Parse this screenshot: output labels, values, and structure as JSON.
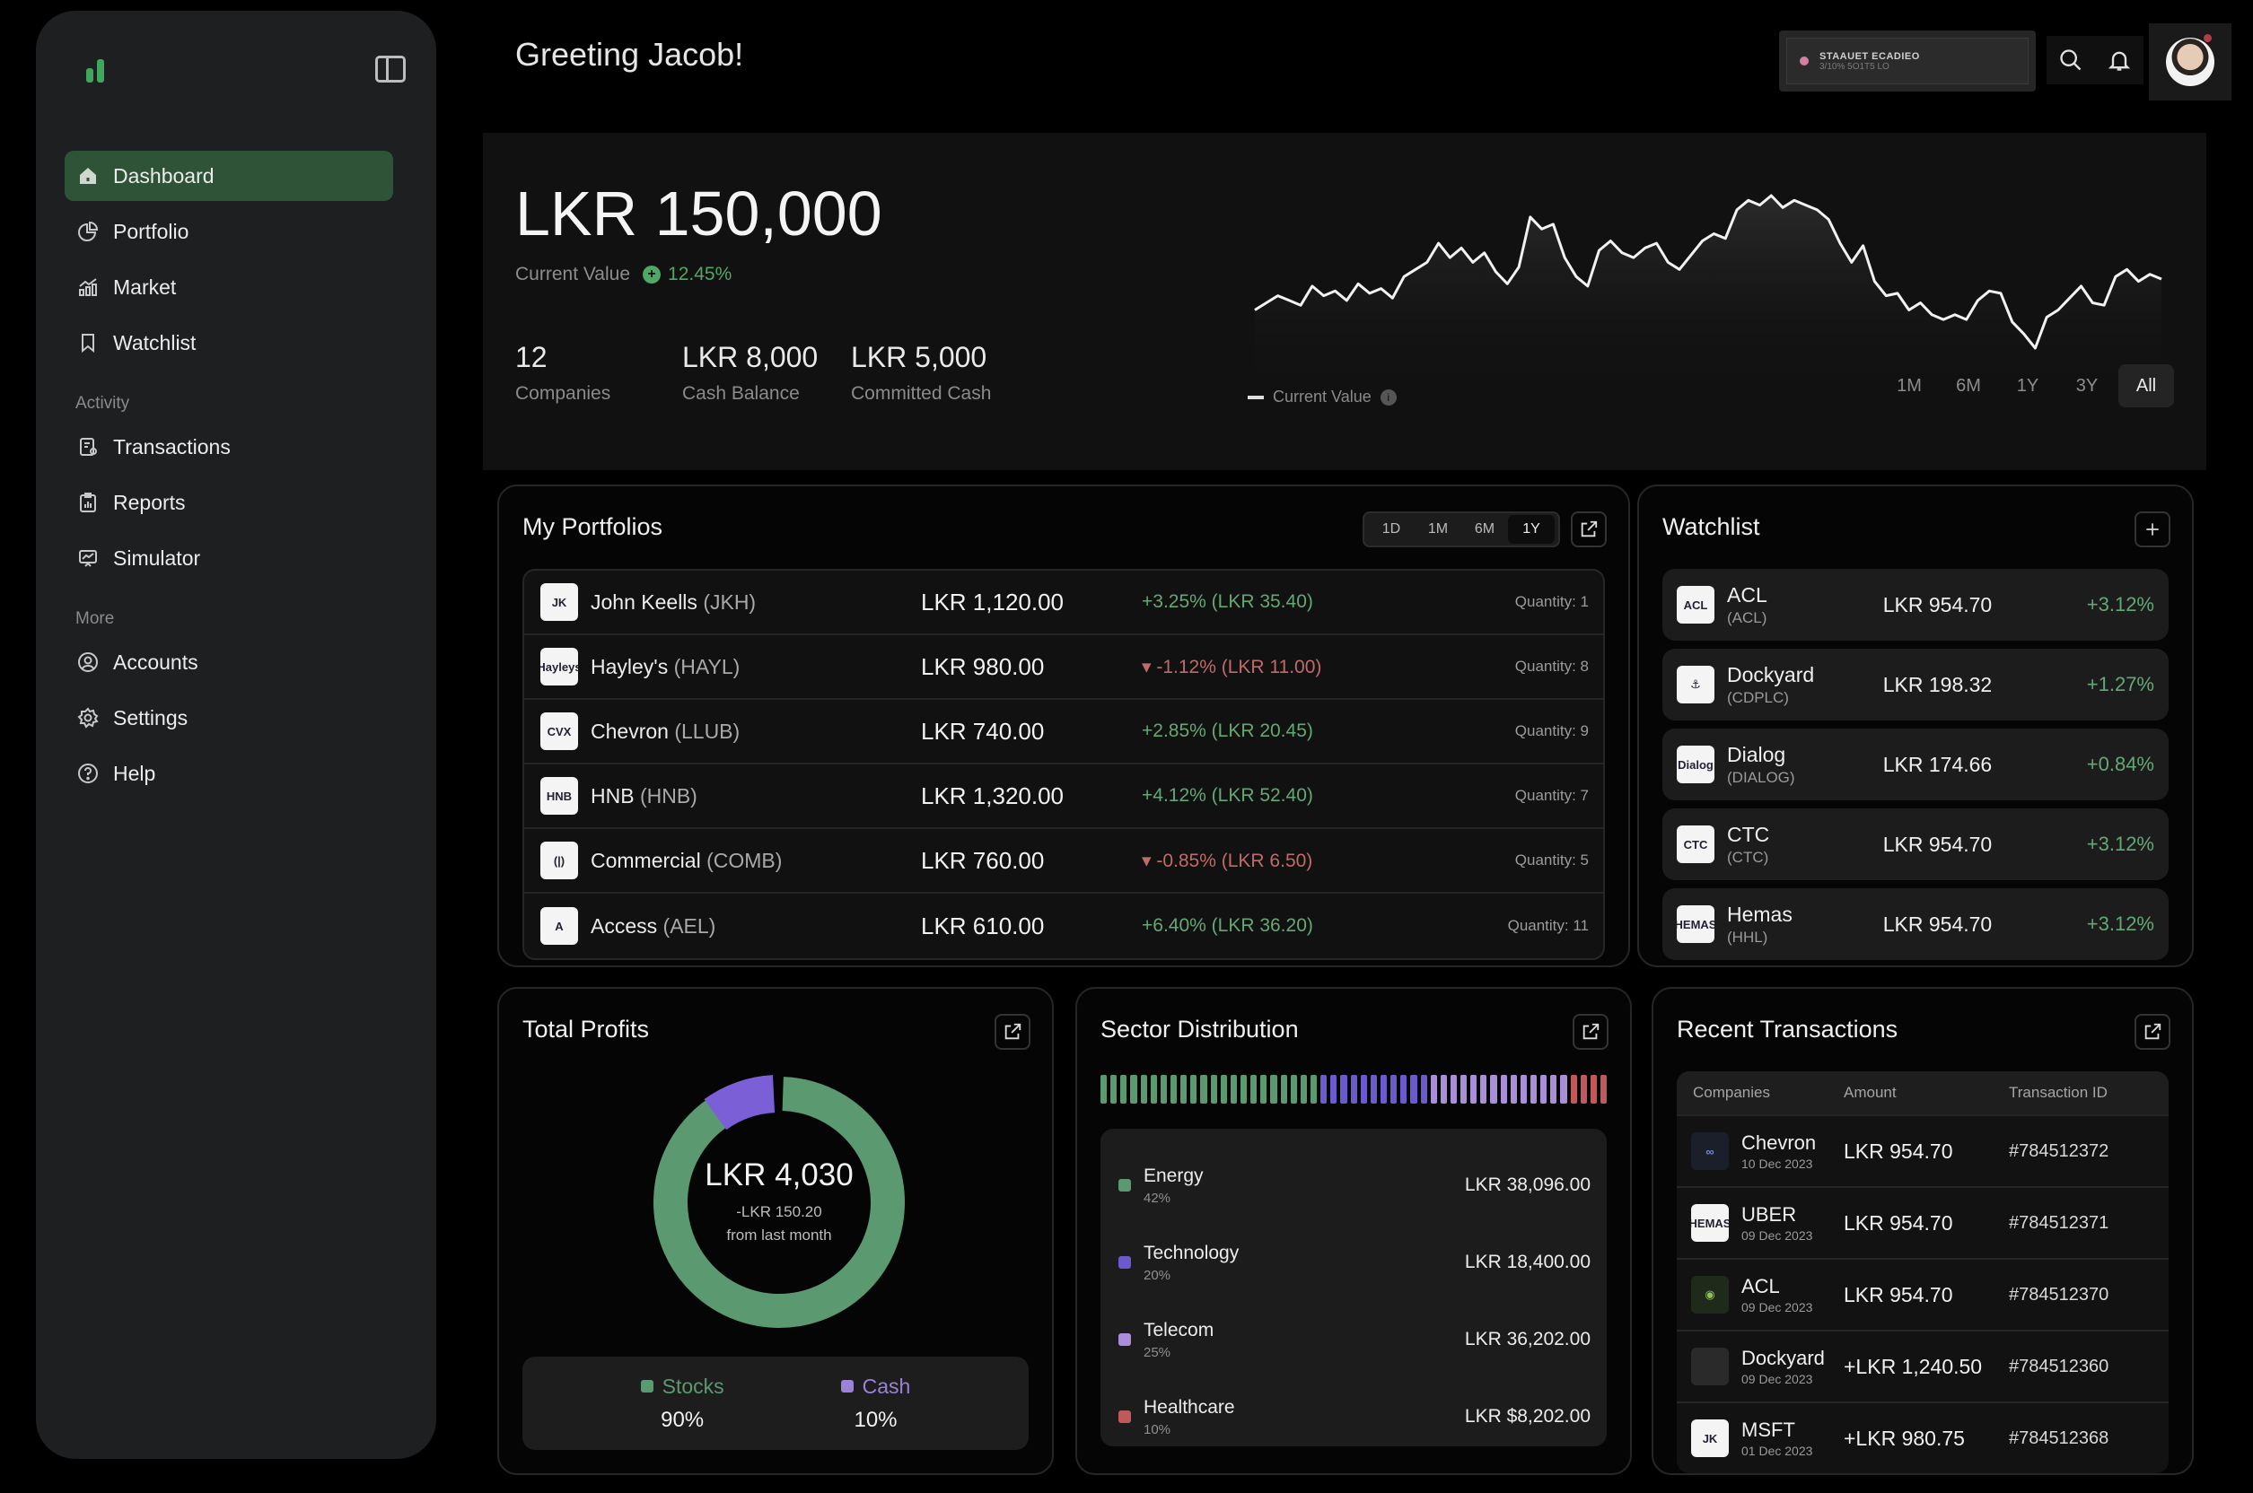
{
  "sidebar": {
    "nav": [
      {
        "label": "Dashboard",
        "icon": "home-icon",
        "active": true
      },
      {
        "label": "Portfolio",
        "icon": "pie-chart-icon"
      },
      {
        "label": "Market",
        "icon": "market-chart-icon"
      },
      {
        "label": "Watchlist",
        "icon": "bookmark-icon"
      }
    ],
    "activity_label": "Activity",
    "activity": [
      {
        "label": "Transactions",
        "icon": "receipt-icon"
      },
      {
        "label": "Reports",
        "icon": "clipboard-chart-icon"
      },
      {
        "label": "Simulator",
        "icon": "monitor-chart-icon"
      }
    ],
    "more_label": "More",
    "more": [
      {
        "label": "Accounts",
        "icon": "user-circle-icon"
      },
      {
        "label": "Settings",
        "icon": "gear-icon"
      },
      {
        "label": "Help",
        "icon": "help-circle-icon"
      }
    ]
  },
  "header": {
    "greeting": "Greeting Jacob!",
    "market_status": {
      "title": "STAAUET ECADIEO",
      "subtitle": "3/10% 5O1T5 LO",
      "dot_color": "#d67fa3"
    }
  },
  "hero": {
    "value": "LKR 150,000",
    "label": "Current Value",
    "change": "12.45%",
    "stats": [
      {
        "value": "12",
        "label": "Companies"
      },
      {
        "value": "LKR 8,000",
        "label": "Cash Balance"
      },
      {
        "value": "LKR 5,000",
        "label": "Committed Cash"
      }
    ],
    "legend": "Current Value",
    "ranges": [
      "1M",
      "6M",
      "1Y",
      "3Y",
      "All"
    ],
    "active_range": "All"
  },
  "chart_data": {
    "type": "line",
    "title": "Current Value",
    "series": [
      {
        "name": "Current Value",
        "values": [
          38,
          41,
          44,
          42,
          40,
          48,
          44,
          46,
          42,
          49,
          45,
          47,
          43,
          52,
          55,
          58,
          66,
          60,
          64,
          58,
          62,
          54,
          49,
          56,
          77,
          72,
          74,
          60,
          52,
          48,
          63,
          67,
          62,
          60,
          64,
          66,
          58,
          55,
          61,
          67,
          70,
          68,
          80,
          84,
          82,
          86,
          81,
          84,
          82,
          80,
          76,
          66,
          58,
          65,
          50,
          44,
          45,
          38,
          41,
          36,
          34,
          36,
          34,
          42,
          46,
          45,
          33,
          28,
          22,
          35,
          38,
          43,
          48,
          41,
          40,
          52,
          55,
          50,
          53,
          51
        ]
      }
    ],
    "xlabel": "",
    "ylabel": "",
    "grid": false,
    "legend_position": "bottom-left"
  },
  "portfolios": {
    "title": "My Portfolios",
    "ranges": [
      "1D",
      "1M",
      "6M",
      "1Y"
    ],
    "active_range": "1Y",
    "rows": [
      {
        "name": "John Keells",
        "ticker": "(JKH)",
        "price": "LKR 1,120.00",
        "change": "+3.25% (LKR 35.40)",
        "dir": "up",
        "qty": "Quantity: 1",
        "logo": "JK"
      },
      {
        "name": "Hayley's",
        "ticker": "(HAYL)",
        "price": "LKR 980.00",
        "change": "▾ -1.12% (LKR 11.00)",
        "dir": "down",
        "qty": "Quantity: 8",
        "logo": "Hayleys"
      },
      {
        "name": "Chevron",
        "ticker": "(LLUB)",
        "price": "LKR 740.00",
        "change": "+2.85% (LKR 20.45)",
        "dir": "up",
        "qty": "Quantity: 9",
        "logo": "CVX"
      },
      {
        "name": "HNB",
        "ticker": "(HNB)",
        "price": "LKR 1,320.00",
        "change": "+4.12% (LKR 52.40)",
        "dir": "up",
        "qty": "Quantity: 7",
        "logo": "HNB"
      },
      {
        "name": "Commercial",
        "ticker": "(COMB)",
        "price": "LKR 760.00",
        "change": "▾ -0.85% (LKR 6.50)",
        "dir": "down",
        "qty": "Quantity: 5",
        "logo": "(|)"
      },
      {
        "name": "Access",
        "ticker": "(AEL)",
        "price": "LKR 610.00",
        "change": "+6.40% (LKR 36.20)",
        "dir": "up",
        "qty": "Quantity: 11",
        "logo": "A"
      }
    ]
  },
  "watchlist": {
    "title": "Watchlist",
    "items": [
      {
        "name": "ACL",
        "ticker": "(ACL)",
        "price": "LKR 954.70",
        "change": "+3.12%",
        "logo": "ACL"
      },
      {
        "name": "Dockyard",
        "ticker": "(CDPLC)",
        "price": "LKR 198.32",
        "change": "+1.27%",
        "logo": "⚓"
      },
      {
        "name": "Dialog",
        "ticker": "(DIALOG)",
        "price": "LKR 174.66",
        "change": "+0.84%",
        "logo": "Dialog"
      },
      {
        "name": "CTC",
        "ticker": "(CTC)",
        "price": "LKR 954.70",
        "change": "+3.12%",
        "logo": "CTC"
      },
      {
        "name": "Hemas",
        "ticker": "(HHL)",
        "price": "LKR 954.70",
        "change": "+3.12%",
        "logo": "HEMAS"
      }
    ]
  },
  "profits": {
    "title": "Total Profits",
    "value": "LKR 4,030",
    "delta": "-LKR 150.20",
    "delta_caption": "from last month",
    "split": [
      {
        "label": "Stocks",
        "pct": "90%",
        "color": "#5b9a70"
      },
      {
        "label": "Cash",
        "pct": "10%",
        "color": "#7b5fd6"
      }
    ]
  },
  "sectors": {
    "title": "Sector Distribution",
    "items": [
      {
        "name": "Energy",
        "pct": "42%",
        "amount": "LKR 38,096.00",
        "color": "#5b9a70"
      },
      {
        "name": "Technology",
        "pct": "20%",
        "amount": "LKR 18,400.00",
        "color": "#6a5acd"
      },
      {
        "name": "Telecom",
        "pct": "25%",
        "amount": "LKR 36,202.00",
        "color": "#a98fd8"
      },
      {
        "name": "Healthcare",
        "pct": "10%",
        "amount": "LKR $8,202.00",
        "color": "#c05a5a"
      }
    ]
  },
  "transactions": {
    "title": "Recent Transactions",
    "columns": [
      "Companies",
      "Amount",
      "Transaction ID"
    ],
    "rows": [
      {
        "name": "Chevron",
        "date": "10 Dec 2023",
        "amount": "LKR 954.70",
        "id": "#784512372",
        "positive": false,
        "logo": "∞"
      },
      {
        "name": "UBER",
        "date": "09 Dec 2023",
        "amount": "LKR 954.70",
        "id": "#784512371",
        "positive": false,
        "logo": "HEMAS"
      },
      {
        "name": "ACL",
        "date": "09 Dec 2023",
        "amount": "LKR 954.70",
        "id": "#784512370",
        "positive": false,
        "logo": "◉"
      },
      {
        "name": "Dockyard",
        "date": "09 Dec 2023",
        "amount": "+LKR 1,240.50",
        "id": "#784512360",
        "positive": true,
        "logo": ""
      },
      {
        "name": "MSFT",
        "date": "01 Dec 2023",
        "amount": "+LKR 980.75",
        "id": "#784512368",
        "positive": true,
        "logo": "JK"
      }
    ]
  }
}
